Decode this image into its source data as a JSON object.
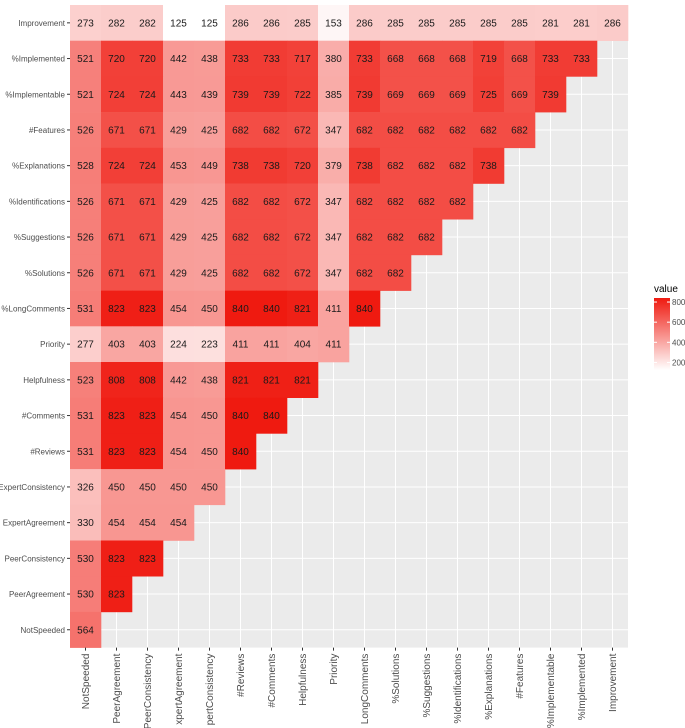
{
  "chart_data": {
    "type": "heatmap",
    "title": "",
    "xlabel": "",
    "ylabel": "",
    "x_categories": [
      "NotSpeeded",
      "PeerAgreement",
      "PeerConsistency",
      "xpertAgreement",
      "pertConsistency",
      "#Reviews",
      "#Comments",
      "Helpfulness",
      "Priority",
      "LongComments",
      "%Solutions",
      "%Suggestions",
      "%Identifications",
      "%Explanations",
      "#Features",
      "%Implementable",
      "%Implemented",
      "Improvement"
    ],
    "y_categories": [
      "Improvement",
      "%Implemented",
      "%Implementable",
      "#Features",
      "%Explanations",
      "%Identifications",
      "%Suggestions",
      "%Solutions",
      "%LongComments",
      "Priority",
      "Helpfulness",
      "#Comments",
      "#Reviews",
      "ExpertConsistency",
      "ExpertAgreement",
      "PeerConsistency",
      "PeerAgreement",
      "NotSpeeded"
    ],
    "values": [
      [
        273,
        282,
        282,
        125,
        125,
        286,
        286,
        285,
        153,
        286,
        285,
        285,
        285,
        285,
        285,
        281,
        281,
        286
      ],
      [
        521,
        720,
        720,
        442,
        438,
        733,
        733,
        717,
        380,
        733,
        668,
        668,
        668,
        719,
        668,
        733,
        733,
        null
      ],
      [
        521,
        724,
        724,
        443,
        439,
        739,
        739,
        722,
        385,
        739,
        669,
        669,
        669,
        725,
        669,
        739,
        null,
        null
      ],
      [
        526,
        671,
        671,
        429,
        425,
        682,
        682,
        672,
        347,
        682,
        682,
        682,
        682,
        682,
        682,
        null,
        null,
        null
      ],
      [
        528,
        724,
        724,
        453,
        449,
        738,
        738,
        720,
        379,
        738,
        682,
        682,
        682,
        738,
        null,
        null,
        null,
        null
      ],
      [
        526,
        671,
        671,
        429,
        425,
        682,
        682,
        672,
        347,
        682,
        682,
        682,
        682,
        null,
        null,
        null,
        null,
        null
      ],
      [
        526,
        671,
        671,
        429,
        425,
        682,
        682,
        672,
        347,
        682,
        682,
        682,
        null,
        null,
        null,
        null,
        null,
        null
      ],
      [
        526,
        671,
        671,
        429,
        425,
        682,
        682,
        672,
        347,
        682,
        682,
        null,
        null,
        null,
        null,
        null,
        null,
        null
      ],
      [
        531,
        823,
        823,
        454,
        450,
        840,
        840,
        821,
        411,
        840,
        null,
        null,
        null,
        null,
        null,
        null,
        null,
        null
      ],
      [
        277,
        403,
        403,
        224,
        223,
        411,
        411,
        404,
        411,
        null,
        null,
        null,
        null,
        null,
        null,
        null,
        null,
        null
      ],
      [
        523,
        808,
        808,
        442,
        438,
        821,
        821,
        821,
        null,
        null,
        null,
        null,
        null,
        null,
        null,
        null,
        null,
        null
      ],
      [
        531,
        823,
        823,
        454,
        450,
        840,
        840,
        null,
        null,
        null,
        null,
        null,
        null,
        null,
        null,
        null,
        null,
        null
      ],
      [
        531,
        823,
        823,
        454,
        450,
        840,
        null,
        null,
        null,
        null,
        null,
        null,
        null,
        null,
        null,
        null,
        null,
        null
      ],
      [
        326,
        450,
        450,
        450,
        450,
        null,
        null,
        null,
        null,
        null,
        null,
        null,
        null,
        null,
        null,
        null,
        null,
        null
      ],
      [
        330,
        454,
        454,
        454,
        null,
        null,
        null,
        null,
        null,
        null,
        null,
        null,
        null,
        null,
        null,
        null,
        null,
        null
      ],
      [
        530,
        823,
        823,
        null,
        null,
        null,
        null,
        null,
        null,
        null,
        null,
        null,
        null,
        null,
        null,
        null,
        null,
        null
      ],
      [
        530,
        823,
        null,
        null,
        null,
        null,
        null,
        null,
        null,
        null,
        null,
        null,
        null,
        null,
        null,
        null,
        null,
        null
      ],
      [
        564,
        null,
        null,
        null,
        null,
        null,
        null,
        null,
        null,
        null,
        null,
        null,
        null,
        null,
        null,
        null,
        null,
        null
      ]
    ],
    "color_scale": {
      "low": "#ffffff",
      "high": "#ef1a10",
      "min": 125,
      "max": 840
    },
    "legend": {
      "title": "value",
      "ticks": [
        200,
        400,
        600,
        800
      ],
      "placement": "right"
    },
    "grid": true,
    "background": "#ebebeb",
    "gridline_color": "#ffffff"
  }
}
